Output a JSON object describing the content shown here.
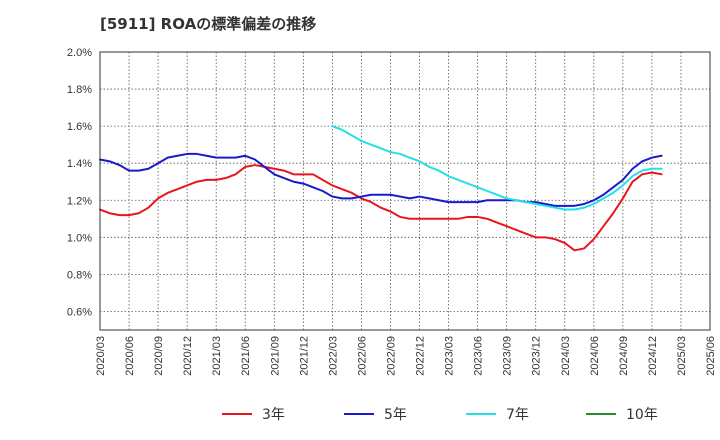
{
  "chart_data": {
    "type": "line",
    "title": "[5911]  ROAの標準偏差の推移",
    "xlabel": "",
    "ylabel": "",
    "ylim": [
      0.5,
      2.0
    ],
    "yticks": [
      "2.0%",
      "1.8%",
      "1.6%",
      "1.4%",
      "1.2%",
      "1.0%",
      "0.8%",
      "0.6%"
    ],
    "ytick_values": [
      2.0,
      1.8,
      1.6,
      1.4,
      1.2,
      1.0,
      0.8,
      0.6
    ],
    "xticks": [
      "2020/03",
      "2020/06",
      "2020/09",
      "2020/12",
      "2021/03",
      "2021/06",
      "2021/09",
      "2021/12",
      "2022/03",
      "2022/06",
      "2022/09",
      "2022/12",
      "2023/03",
      "2023/06",
      "2023/09",
      "2023/12",
      "2024/03",
      "2024/06",
      "2024/09",
      "2024/12",
      "2025/03",
      "2025/06"
    ],
    "x_start": "2020/03",
    "grid": true,
    "legend_position": "bottom",
    "series": [
      {
        "name": "3年",
        "color": "#e8161c",
        "start": "2020/03",
        "values": [
          1.15,
          1.13,
          1.12,
          1.12,
          1.13,
          1.16,
          1.21,
          1.24,
          1.26,
          1.28,
          1.3,
          1.31,
          1.31,
          1.32,
          1.34,
          1.38,
          1.39,
          1.38,
          1.37,
          1.36,
          1.34,
          1.34,
          1.34,
          1.31,
          1.28,
          1.26,
          1.24,
          1.21,
          1.19,
          1.16,
          1.14,
          1.11,
          1.1,
          1.1,
          1.1,
          1.1,
          1.1,
          1.1,
          1.11,
          1.11,
          1.1,
          1.08,
          1.06,
          1.04,
          1.02,
          1.0,
          1.0,
          0.99,
          0.97,
          0.93,
          0.94,
          0.99,
          1.06,
          1.13,
          1.21,
          1.3,
          1.34,
          1.35,
          1.34
        ]
      },
      {
        "name": "5年",
        "color": "#1a1acc",
        "start": "2020/03",
        "values": [
          1.42,
          1.41,
          1.39,
          1.36,
          1.36,
          1.37,
          1.4,
          1.43,
          1.44,
          1.45,
          1.45,
          1.44,
          1.43,
          1.43,
          1.43,
          1.44,
          1.42,
          1.38,
          1.34,
          1.32,
          1.3,
          1.29,
          1.27,
          1.25,
          1.22,
          1.21,
          1.21,
          1.22,
          1.23,
          1.23,
          1.23,
          1.22,
          1.21,
          1.22,
          1.21,
          1.2,
          1.19,
          1.19,
          1.19,
          1.19,
          1.2,
          1.2,
          1.2,
          1.2,
          1.19,
          1.19,
          1.18,
          1.17,
          1.17,
          1.17,
          1.18,
          1.2,
          1.23,
          1.27,
          1.31,
          1.37,
          1.41,
          1.43,
          1.44
        ]
      },
      {
        "name": "7年",
        "color": "#22e0e8",
        "start": "2022/03",
        "values": [
          1.6,
          1.58,
          1.55,
          1.52,
          1.5,
          1.48,
          1.46,
          1.45,
          1.43,
          1.41,
          1.38,
          1.36,
          1.33,
          1.31,
          1.29,
          1.27,
          1.25,
          1.23,
          1.21,
          1.2,
          1.19,
          1.18,
          1.17,
          1.16,
          1.15,
          1.15,
          1.16,
          1.18,
          1.21,
          1.24,
          1.28,
          1.33,
          1.36,
          1.37,
          1.37
        ]
      },
      {
        "name": "10年",
        "color": "#2a8a2a",
        "start": "2025/03",
        "values": []
      }
    ]
  }
}
